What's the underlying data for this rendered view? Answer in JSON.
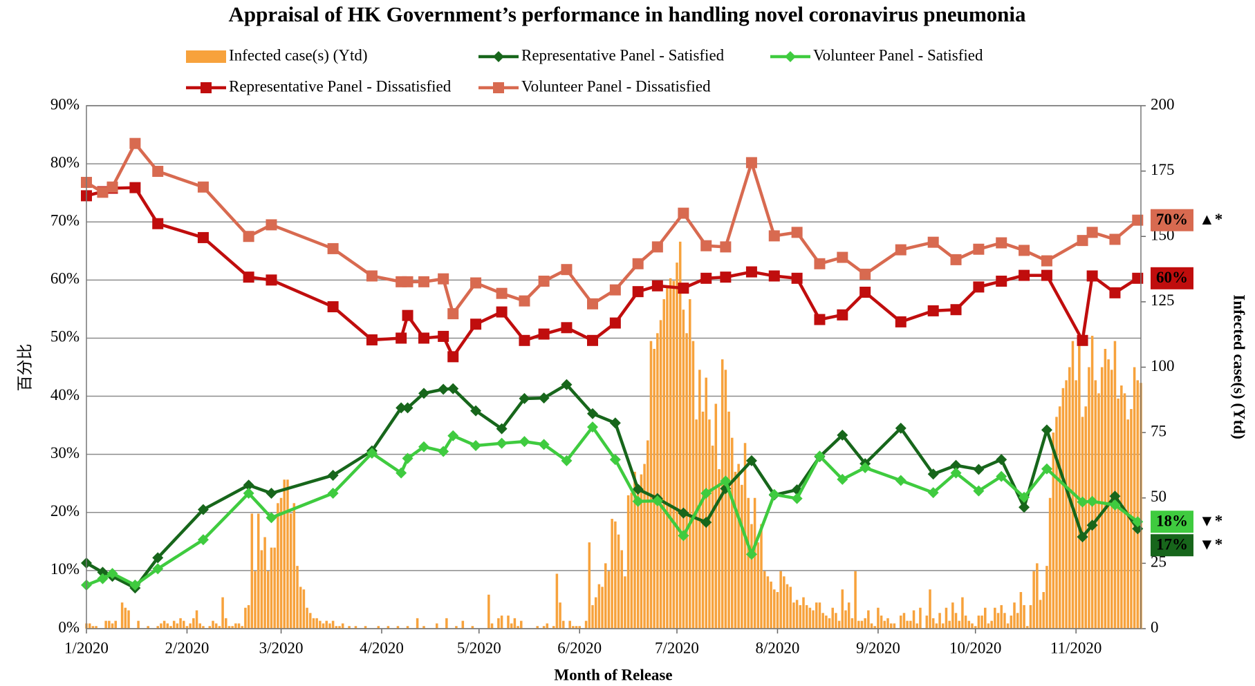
{
  "chart_data": {
    "type": "bar_line",
    "title": "Appraisal of HK Government’s performance in handling novel coronavirus pneumonia",
    "x_label": "Month of Release",
    "y_label": "百分比",
    "y2_label": "Infected case(s) (Ytd)",
    "xlim": [
      0,
      325
    ],
    "xticks": [
      {
        "value": 0,
        "label": "1/2020"
      },
      {
        "value": 31,
        "label": "2/2020"
      },
      {
        "value": 60,
        "label": "3/2020"
      },
      {
        "value": 91,
        "label": "4/2020"
      },
      {
        "value": 121,
        "label": "5/2020"
      },
      {
        "value": 152,
        "label": "6/2020"
      },
      {
        "value": 182,
        "label": "7/2020"
      },
      {
        "value": 213,
        "label": "8/2020"
      },
      {
        "value": 244,
        "label": "9/2020"
      },
      {
        "value": 274,
        "label": "10/2020"
      },
      {
        "value": 305,
        "label": "11/2020"
      }
    ],
    "ylim": [
      0,
      90
    ],
    "yticks": [
      {
        "value": 0,
        "label": "0%"
      },
      {
        "value": 10,
        "label": "10%"
      },
      {
        "value": 20,
        "label": "20%"
      },
      {
        "value": 30,
        "label": "30%"
      },
      {
        "value": 40,
        "label": "40%"
      },
      {
        "value": 50,
        "label": "50%"
      },
      {
        "value": 60,
        "label": "60%"
      },
      {
        "value": 70,
        "label": "70%"
      },
      {
        "value": 80,
        "label": "80%"
      },
      {
        "value": 90,
        "label": "90%"
      }
    ],
    "y2lim": [
      0,
      200
    ],
    "y2ticks": [
      0,
      25,
      50,
      75,
      100,
      125,
      150,
      175,
      200
    ],
    "grid": true,
    "series": [
      {
        "name": "Infected case(s) (Ytd)",
        "type": "bar",
        "axis": "y2",
        "color": "#f7a23c",
        "x": [
          0,
          1,
          2,
          3,
          4,
          5,
          6,
          7,
          8,
          9,
          10,
          11,
          12,
          13,
          14,
          15,
          16,
          17,
          18,
          19,
          20,
          21,
          22,
          23,
          24,
          25,
          26,
          27,
          28,
          29,
          30,
          31,
          32,
          33,
          34,
          35,
          36,
          37,
          38,
          39,
          40,
          41,
          42,
          43,
          44,
          45,
          46,
          47,
          48,
          49,
          50,
          51,
          52,
          53,
          54,
          55,
          56,
          57,
          58,
          59,
          60,
          61,
          62,
          63,
          64,
          65,
          66,
          67,
          68,
          69,
          70,
          71,
          72,
          73,
          74,
          75,
          76,
          77,
          78,
          79,
          80,
          81,
          82,
          83,
          84,
          85,
          86,
          87,
          88,
          89,
          90,
          91,
          92,
          93,
          94,
          95,
          96,
          97,
          98,
          99,
          100,
          101,
          102,
          103,
          104,
          105,
          106,
          107,
          108,
          109,
          110,
          111,
          112,
          113,
          114,
          115,
          116,
          117,
          118,
          119,
          120,
          121,
          122,
          123,
          124,
          125,
          126,
          127,
          128,
          129,
          130,
          131,
          132,
          133,
          134,
          135,
          136,
          137,
          138,
          139,
          140,
          141,
          142,
          143,
          144,
          145,
          146,
          147,
          148,
          149,
          150,
          151,
          152,
          153,
          154,
          155,
          156,
          157,
          158,
          159,
          160,
          161,
          162,
          163,
          164,
          165,
          166,
          167,
          168,
          169,
          170,
          171,
          172,
          173,
          174,
          175,
          176,
          177,
          178,
          179,
          180,
          181,
          182,
          183,
          184,
          185,
          186,
          187,
          188,
          189,
          190,
          191,
          192,
          193,
          194,
          195,
          196,
          197,
          198,
          199,
          200,
          201,
          202,
          203,
          204,
          205,
          206,
          207,
          208,
          209,
          210,
          211,
          212,
          213,
          214,
          215,
          216,
          217,
          218,
          219,
          220,
          221,
          222,
          223,
          224,
          225,
          226,
          227,
          228,
          229,
          230,
          231,
          232,
          233,
          234,
          235,
          236,
          237,
          238,
          239,
          240,
          241,
          242,
          243,
          244,
          245,
          246,
          247,
          248,
          249,
          250,
          251,
          252,
          253,
          254,
          255,
          256,
          257,
          258,
          259,
          260,
          261,
          262,
          263,
          264,
          265,
          266,
          267,
          268,
          269,
          270,
          271,
          272,
          273,
          274,
          275,
          276,
          277,
          278,
          279,
          280,
          281,
          282,
          283,
          284,
          285,
          286,
          287,
          288,
          289,
          290,
          291,
          292,
          293,
          294,
          295,
          296,
          297,
          298,
          299,
          300,
          301,
          302,
          303,
          304,
          305,
          306,
          307,
          308,
          309,
          310,
          311,
          312,
          313,
          314,
          315,
          316,
          317,
          318,
          319,
          320,
          321,
          322,
          323,
          324,
          325
        ],
        "values": [
          2,
          2,
          1,
          1,
          0,
          0,
          3,
          3,
          2,
          3,
          0,
          10,
          8,
          7,
          0,
          0,
          3,
          0,
          0,
          1,
          0,
          0,
          1,
          2,
          3,
          2,
          1,
          3,
          2,
          4,
          3,
          1,
          2,
          4,
          7,
          2,
          1,
          0,
          1,
          3,
          2,
          1,
          12,
          4,
          1,
          1,
          2,
          2,
          1,
          8,
          9,
          44,
          22,
          44,
          30,
          35,
          22,
          31,
          31,
          48,
          50,
          57,
          57,
          44,
          48,
          24,
          16,
          15,
          8,
          6,
          4,
          4,
          3,
          2,
          3,
          2,
          3,
          1,
          1,
          2,
          0,
          1,
          0,
          1,
          0,
          0,
          1,
          0,
          0,
          0,
          1,
          0,
          0,
          1,
          0,
          0,
          1,
          0,
          0,
          1,
          0,
          0,
          4,
          0,
          1,
          0,
          0,
          0,
          2,
          0,
          0,
          4,
          0,
          0,
          1,
          0,
          3,
          0,
          0,
          1,
          0,
          0,
          0,
          0,
          13,
          2,
          0,
          4,
          5,
          0,
          5,
          2,
          4,
          1,
          3,
          0,
          0,
          0,
          0,
          1,
          0,
          1,
          2,
          0,
          1,
          21,
          10,
          3,
          0,
          3,
          1,
          1,
          1,
          0,
          3,
          33,
          9,
          12,
          17,
          16,
          25,
          22,
          42,
          41,
          36,
          30,
          20,
          51,
          52,
          60,
          53,
          59,
          63,
          72,
          110,
          107,
          113,
          118,
          126,
          131,
          134,
          133,
          140,
          148,
          122,
          113,
          126,
          110,
          80,
          99,
          83,
          96,
          80,
          70,
          86,
          61,
          103,
          99,
          83,
          73,
          60,
          63,
          55,
          71,
          50,
          40,
          50,
          33,
          40,
          22,
          20,
          18,
          15,
          14,
          22,
          20,
          17,
          16,
          10,
          11,
          9,
          12,
          9,
          8,
          7,
          10,
          10,
          6,
          5,
          4,
          8,
          6,
          3,
          15,
          7,
          10,
          4,
          22,
          3,
          3,
          4,
          7,
          2,
          1,
          8,
          5,
          3,
          4,
          2,
          2,
          0,
          5,
          6,
          3,
          3,
          7,
          2,
          8,
          0,
          5,
          15,
          4,
          2,
          6,
          2,
          8,
          3,
          10,
          6,
          3,
          12,
          5,
          3,
          2,
          1,
          5,
          5,
          8,
          2,
          3,
          8,
          6,
          9,
          6,
          2,
          5,
          10,
          6,
          14,
          9,
          1,
          9,
          22,
          25,
          11,
          14,
          24,
          50,
          75,
          81,
          85,
          92,
          95,
          100,
          110,
          95,
          110,
          81,
          85,
          100,
          112,
          95,
          90,
          100,
          107,
          103,
          99,
          110,
          88,
          93,
          90,
          80,
          84,
          100,
          95,
          94
        ]
      },
      {
        "name": "Representative Panel - Satisfied",
        "type": "line",
        "marker": "diamond",
        "color": "#17661b",
        "x": [
          0,
          5,
          8,
          15,
          22,
          36,
          50,
          57,
          76,
          88,
          97,
          99,
          104,
          110,
          113,
          120,
          128,
          135,
          141,
          148,
          156,
          163,
          170,
          176,
          184,
          191,
          197,
          205,
          212,
          219,
          226,
          233,
          240,
          251,
          261,
          268,
          275,
          282,
          289,
          296,
          307,
          310,
          317,
          324
        ],
        "values": [
          11.3,
          9.7,
          9.0,
          7.0,
          12.2,
          20.5,
          24.7,
          23.3,
          26.4,
          30.6,
          38.0,
          38.0,
          40.5,
          41.2,
          41.3,
          37.5,
          34.4,
          39.6,
          39.7,
          42.0,
          37.0,
          35.4,
          24.0,
          22.4,
          19.9,
          18.3,
          24.1,
          28.9,
          23.0,
          23.9,
          29.6,
          33.3,
          28.4,
          34.5,
          26.6,
          28.1,
          27.4,
          29.1,
          20.9,
          34.2,
          15.8,
          17.8,
          22.8,
          17.2
        ],
        "end_label": "17%",
        "change": "▼*",
        "change_color": "#e8141c"
      },
      {
        "name": "Volunteer Panel - Satisfied",
        "type": "line",
        "marker": "diamond",
        "color": "#3fcb3f",
        "x": [
          0,
          5,
          8,
          15,
          22,
          36,
          50,
          57,
          76,
          88,
          97,
          99,
          104,
          110,
          113,
          120,
          128,
          135,
          141,
          148,
          156,
          163,
          170,
          176,
          184,
          191,
          197,
          205,
          212,
          219,
          226,
          233,
          240,
          251,
          261,
          268,
          275,
          282,
          289,
          296,
          307,
          310,
          317,
          324
        ],
        "values": [
          7.5,
          8.6,
          9.5,
          7.5,
          10.3,
          15.3,
          23.3,
          19.1,
          23.3,
          30.2,
          26.8,
          29.3,
          31.3,
          30.5,
          33.2,
          31.5,
          31.9,
          32.2,
          31.7,
          28.9,
          34.7,
          29.1,
          21.9,
          22.0,
          16.0,
          23.3,
          25.4,
          12.8,
          23.1,
          22.4,
          29.7,
          25.7,
          27.7,
          25.5,
          23.4,
          26.8,
          23.7,
          26.2,
          22.6,
          27.5,
          21.8,
          21.9,
          21.3,
          18.4
        ],
        "end_label": "18%",
        "change": "▼*",
        "change_color": "#e8141c"
      },
      {
        "name": "Representative Panel - Dissatisfied",
        "type": "line",
        "marker": "square",
        "color": "#c00d0d",
        "x": [
          0,
          5,
          8,
          15,
          22,
          36,
          50,
          57,
          76,
          88,
          97,
          99,
          104,
          110,
          113,
          120,
          128,
          135,
          141,
          148,
          156,
          163,
          170,
          176,
          184,
          191,
          197,
          205,
          212,
          219,
          226,
          233,
          240,
          251,
          261,
          268,
          275,
          282,
          289,
          296,
          307,
          310,
          317,
          324
        ],
        "values": [
          74.5,
          75.2,
          75.8,
          75.9,
          69.7,
          67.3,
          60.5,
          60.0,
          55.4,
          49.7,
          50.0,
          53.9,
          50.0,
          50.3,
          46.8,
          52.4,
          54.5,
          49.6,
          50.7,
          51.8,
          49.6,
          52.6,
          58.0,
          59.0,
          58.6,
          60.3,
          60.5,
          61.4,
          60.7,
          60.3,
          53.2,
          54.0,
          57.9,
          52.8,
          54.7,
          54.9,
          58.8,
          59.8,
          60.8,
          60.8,
          49.6,
          60.7,
          57.8,
          60.3
        ],
        "end_label": "60%"
      },
      {
        "name": "Volunteer Panel - Dissatisfied",
        "type": "line",
        "marker": "square",
        "color": "#d86a50",
        "x": [
          0,
          5,
          8,
          15,
          22,
          36,
          50,
          57,
          76,
          88,
          97,
          99,
          104,
          110,
          113,
          120,
          128,
          135,
          141,
          148,
          156,
          163,
          170,
          176,
          184,
          191,
          197,
          205,
          212,
          219,
          226,
          233,
          240,
          251,
          261,
          268,
          275,
          282,
          289,
          296,
          307,
          310,
          317,
          324
        ],
        "values": [
          76.8,
          75.1,
          76.0,
          83.5,
          78.7,
          76.0,
          67.5,
          69.5,
          65.4,
          60.7,
          59.7,
          59.7,
          59.7,
          60.2,
          54.2,
          59.5,
          57.7,
          56.4,
          59.8,
          61.8,
          55.9,
          58.3,
          62.8,
          65.7,
          71.5,
          65.9,
          65.7,
          80.2,
          67.6,
          68.2,
          62.8,
          63.9,
          61.0,
          65.2,
          66.5,
          63.5,
          65.3,
          66.4,
          65.1,
          63.3,
          66.8,
          68.2,
          67.0,
          70.3
        ],
        "end_label": "70%",
        "change": "▲*",
        "change_color": "#22a94a"
      }
    ]
  }
}
